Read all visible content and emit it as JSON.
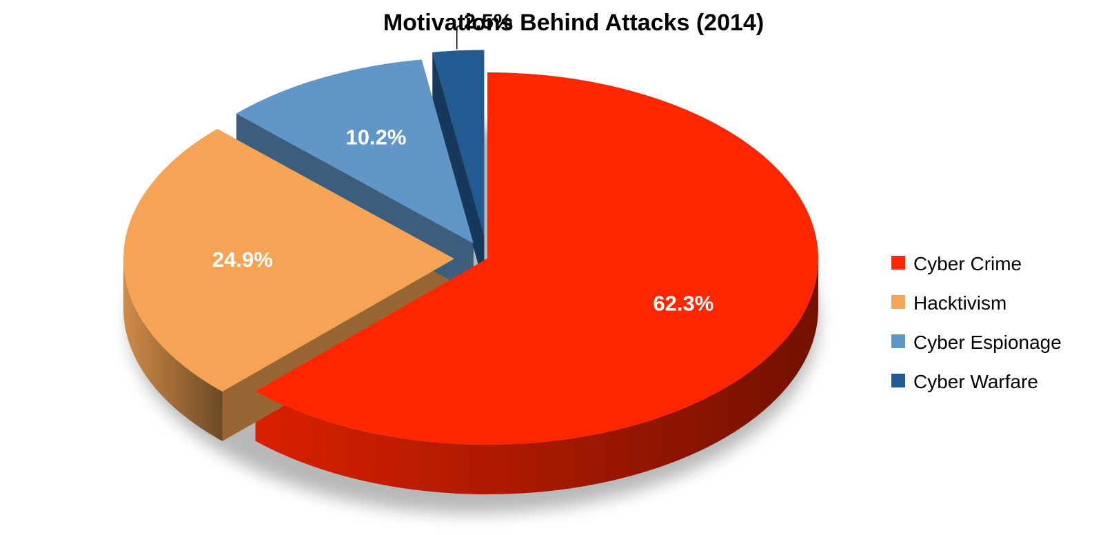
{
  "chart_data": {
    "type": "pie",
    "variant": "3d-exploded",
    "title": "Motivations Behind Attacks (2014)",
    "series": [
      {
        "name": "Cyber Crime",
        "value": 62.3,
        "label": "62.3%",
        "color": "#FF2600",
        "label_color": "#FFFFFF"
      },
      {
        "name": "Hacktivism",
        "value": 24.9,
        "label": "24.9%",
        "color": "#F5A456",
        "label_color": "#FFFFFF"
      },
      {
        "name": "Cyber Espionage",
        "value": 10.2,
        "label": "10.2%",
        "color": "#6096C8",
        "label_color": "#FFFFFF"
      },
      {
        "name": "Cyber Warfare",
        "value": 2.5,
        "label": "2.5%",
        "color": "#245A92",
        "label_color": "#000000"
      }
    ],
    "legend_position": "right"
  }
}
